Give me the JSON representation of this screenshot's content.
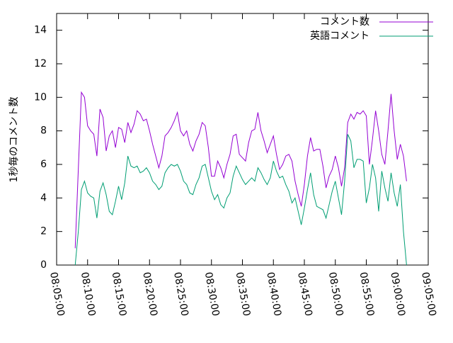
{
  "chart_data": {
    "type": "line",
    "ylabel": "1秒毎のコメント数",
    "xlim": [
      "08:05:00",
      "09:05:00"
    ],
    "xticks": [
      "08:05:00",
      "08:10:00",
      "08:15:00",
      "08:20:00",
      "08:25:00",
      "08:30:00",
      "08:35:00",
      "08:40:00",
      "08:45:00",
      "08:50:00",
      "08:55:00",
      "09:00:00",
      "09:05:00"
    ],
    "ylim": [
      0,
      15
    ],
    "yticks": [
      0,
      2,
      4,
      6,
      8,
      10,
      12,
      14
    ],
    "legend": "top-right",
    "x": [
      "08:08:00",
      "08:08:30",
      "08:09:00",
      "08:09:30",
      "08:10:00",
      "08:10:30",
      "08:11:00",
      "08:11:30",
      "08:12:00",
      "08:12:30",
      "08:13:00",
      "08:13:30",
      "08:14:00",
      "08:14:30",
      "08:15:00",
      "08:15:30",
      "08:16:00",
      "08:16:30",
      "08:17:00",
      "08:17:30",
      "08:18:00",
      "08:18:30",
      "08:19:00",
      "08:19:30",
      "08:20:00",
      "08:20:30",
      "08:21:00",
      "08:21:30",
      "08:22:00",
      "08:22:30",
      "08:23:00",
      "08:23:30",
      "08:24:00",
      "08:24:30",
      "08:25:00",
      "08:25:30",
      "08:26:00",
      "08:26:30",
      "08:27:00",
      "08:27:30",
      "08:28:00",
      "08:28:30",
      "08:29:00",
      "08:29:30",
      "08:30:00",
      "08:30:30",
      "08:31:00",
      "08:31:30",
      "08:32:00",
      "08:32:30",
      "08:33:00",
      "08:33:30",
      "08:34:00",
      "08:34:30",
      "08:35:00",
      "08:35:30",
      "08:36:00",
      "08:36:30",
      "08:37:00",
      "08:37:30",
      "08:38:00",
      "08:38:30",
      "08:39:00",
      "08:39:30",
      "08:40:00",
      "08:40:30",
      "08:41:00",
      "08:41:30",
      "08:42:00",
      "08:42:30",
      "08:43:00",
      "08:43:30",
      "08:44:00",
      "08:44:30",
      "08:45:00",
      "08:45:30",
      "08:46:00",
      "08:46:30",
      "08:47:00",
      "08:47:30",
      "08:48:00",
      "08:48:30",
      "08:49:00",
      "08:49:30",
      "08:50:00",
      "08:50:30",
      "08:51:00",
      "08:51:30",
      "08:52:00",
      "08:52:30",
      "08:53:00",
      "08:53:30",
      "08:54:00",
      "08:54:30",
      "08:55:00",
      "08:55:30",
      "08:56:00",
      "08:56:30",
      "08:57:00",
      "08:57:30",
      "08:58:00",
      "08:58:30",
      "08:59:00",
      "08:59:30",
      "09:00:00",
      "09:00:30",
      "09:01:00",
      "09:01:30"
    ],
    "series": [
      {
        "name": "コメント数",
        "color": "#9400d3",
        "values": [
          1.0,
          5.7,
          10.3,
          10.0,
          8.3,
          8.0,
          7.8,
          6.5,
          9.3,
          8.8,
          6.8,
          7.7,
          8.0,
          7.0,
          8.2,
          8.1,
          7.3,
          8.5,
          7.9,
          8.4,
          9.2,
          9.0,
          8.6,
          8.7,
          8.0,
          7.2,
          6.5,
          5.8,
          6.5,
          7.7,
          7.9,
          8.2,
          8.6,
          9.1,
          8.0,
          7.7,
          8.0,
          7.2,
          6.8,
          7.4,
          7.8,
          8.5,
          8.3,
          7.0,
          5.3,
          5.3,
          6.2,
          5.8,
          5.2,
          6.0,
          6.6,
          7.7,
          7.8,
          6.6,
          6.4,
          6.2,
          7.3,
          8.0,
          8.1,
          9.1,
          8.0,
          7.4,
          6.7,
          7.2,
          7.7,
          6.6,
          5.7,
          6.0,
          6.5,
          6.6,
          6.2,
          5.0,
          4.2,
          3.5,
          4.8,
          6.5,
          7.6,
          6.8,
          6.9,
          6.9,
          5.9,
          4.6,
          5.3,
          5.7,
          6.5,
          5.8,
          4.7,
          5.8,
          8.5,
          9.0,
          8.7,
          9.1,
          9.0,
          9.2,
          8.9,
          6.0,
          7.5,
          9.2,
          8.0,
          6.6,
          6.0,
          8.0,
          10.2,
          8.0,
          6.3,
          7.2,
          6.5,
          5.0
        ]
      },
      {
        "name": "英語コメント",
        "color": "#009e73",
        "values": [
          0,
          2.0,
          4.5,
          5.0,
          4.3,
          4.1,
          4.0,
          2.8,
          4.4,
          4.9,
          4.2,
          3.2,
          3.0,
          3.8,
          4.7,
          3.9,
          4.9,
          6.5,
          5.9,
          5.8,
          5.9,
          5.5,
          5.6,
          5.8,
          5.5,
          5.0,
          4.8,
          4.5,
          4.7,
          5.5,
          5.8,
          6.0,
          5.9,
          6.0,
          5.6,
          5.0,
          4.8,
          4.3,
          4.2,
          4.8,
          5.2,
          5.9,
          6.0,
          5.2,
          4.4,
          3.9,
          4.2,
          3.6,
          3.4,
          4.0,
          4.3,
          5.3,
          5.9,
          5.5,
          5.1,
          4.8,
          5.0,
          5.2,
          5.0,
          5.8,
          5.5,
          5.1,
          4.8,
          5.2,
          6.2,
          5.6,
          5.2,
          5.3,
          4.8,
          4.4,
          3.7,
          4.0,
          3.2,
          2.4,
          3.4,
          4.5,
          5.5,
          4.2,
          3.5,
          3.4,
          3.3,
          2.8,
          3.6,
          4.4,
          5.0,
          4.0,
          3.0,
          5.0,
          7.8,
          7.4,
          5.8,
          6.3,
          6.3,
          6.2,
          3.7,
          4.6,
          6.0,
          5.2,
          3.2,
          5.6,
          4.6,
          3.8,
          5.5,
          4.3,
          3.5,
          4.8,
          2.0,
          0
        ]
      }
    ]
  }
}
